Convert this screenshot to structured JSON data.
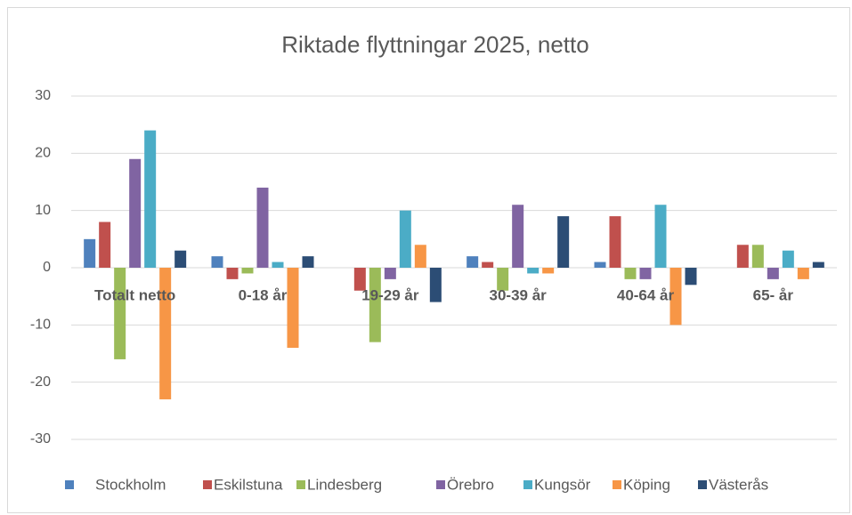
{
  "chart_data": {
    "type": "bar",
    "title": "Riktade flyttningar 2025, netto",
    "categories": [
      "Totalt netto",
      "0-18 år",
      "19-29 år",
      "30-39 år",
      "40-64 år",
      "65- år"
    ],
    "series": [
      {
        "name": "Stockholm",
        "color": "#4f81bd",
        "values": [
          5,
          2,
          0,
          2,
          1,
          0
        ]
      },
      {
        "name": "Eskilstuna",
        "color": "#c0504d",
        "values": [
          8,
          -2,
          -4,
          1,
          9,
          4
        ]
      },
      {
        "name": "Lindesberg",
        "color": "#9bbb59",
        "values": [
          -16,
          -1,
          -13,
          -4,
          -2,
          4
        ]
      },
      {
        "name": "Örebro",
        "color": "#8064a2",
        "values": [
          19,
          14,
          -2,
          11,
          -2,
          -2
        ]
      },
      {
        "name": "Kungsör",
        "color": "#4bacc6",
        "values": [
          24,
          1,
          10,
          -1,
          11,
          3
        ]
      },
      {
        "name": "Köping",
        "color": "#f79646",
        "values": [
          -23,
          -14,
          4,
          -1,
          -10,
          -2
        ]
      },
      {
        "name": "Västerås",
        "color": "#2c4d75",
        "values": [
          3,
          2,
          -6,
          9,
          -3,
          1
        ]
      }
    ],
    "ylim": [
      -30,
      30
    ],
    "yticks": [
      -30,
      -20,
      -10,
      0,
      10,
      20,
      30
    ],
    "grid": true,
    "legend": "bottom"
  }
}
